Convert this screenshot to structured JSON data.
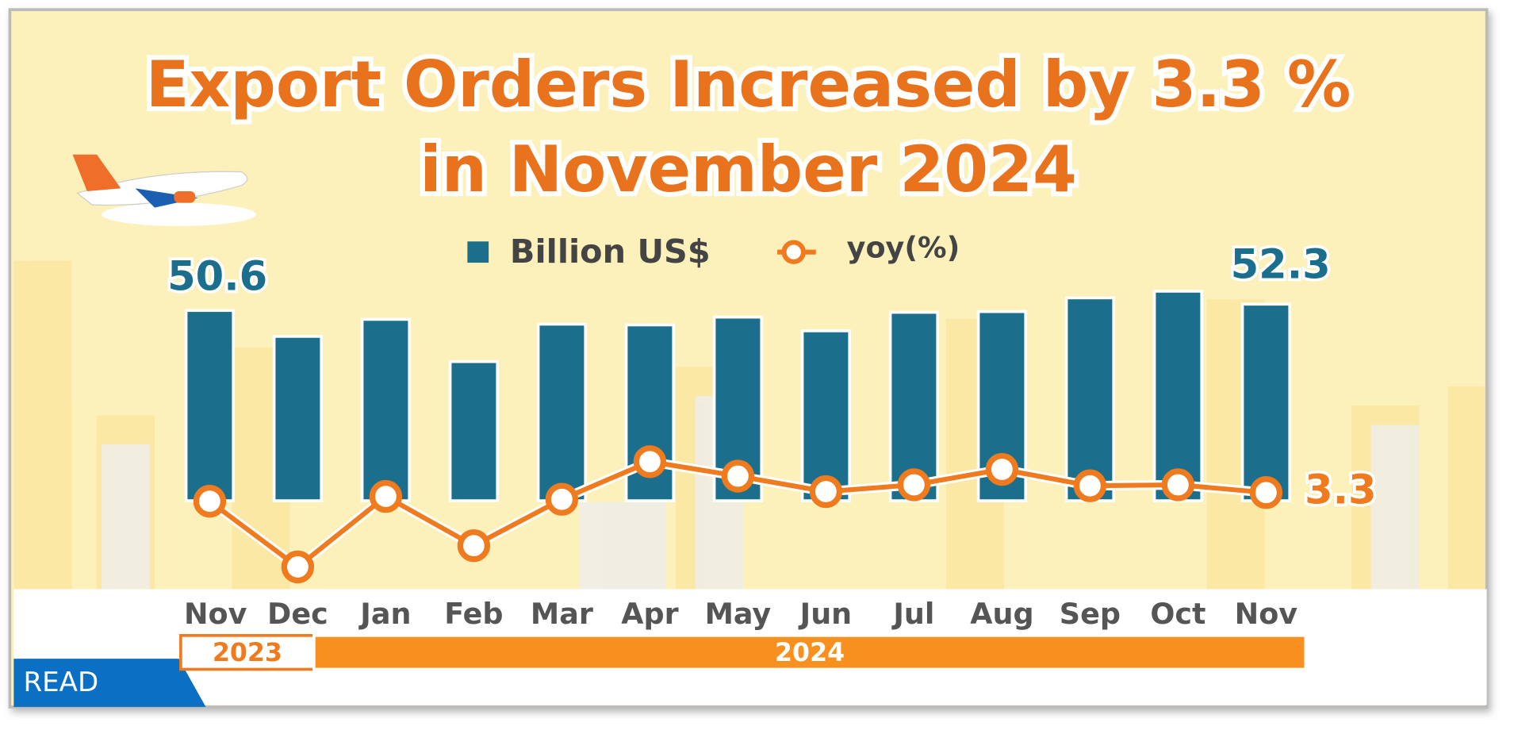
{
  "chart_data": {
    "type": "bar_line",
    "title": [
      "Export Orders Increased by 3.3 %",
      "in November 2024"
    ],
    "categories": [
      "Nov",
      "Dec",
      "Jan",
      "Feb",
      "Mar",
      "Apr",
      "May",
      "Jun",
      "Jul",
      "Aug",
      "Sep",
      "Oct",
      "Nov"
    ],
    "x_groups": [
      "2023",
      "2024"
    ],
    "series": [
      {
        "name": "Billion US$",
        "color": "#1b6f8c",
        "values": [
          50.6,
          43.6,
          48.2,
          36.8,
          46.9,
          46.7,
          48.8,
          45.1,
          50.1,
          50.3,
          54.0,
          55.8,
          52.3
        ]
      },
      {
        "name": "yoy(%)",
        "color": "#f07a1e",
        "values": [
          0.6,
          -19.8,
          2.1,
          -13.2,
          1.2,
          12.9,
          8.4,
          3.6,
          5.7,
          10.5,
          5.4,
          5.7,
          3.3
        ]
      }
    ],
    "tag": "READ"
  }
}
